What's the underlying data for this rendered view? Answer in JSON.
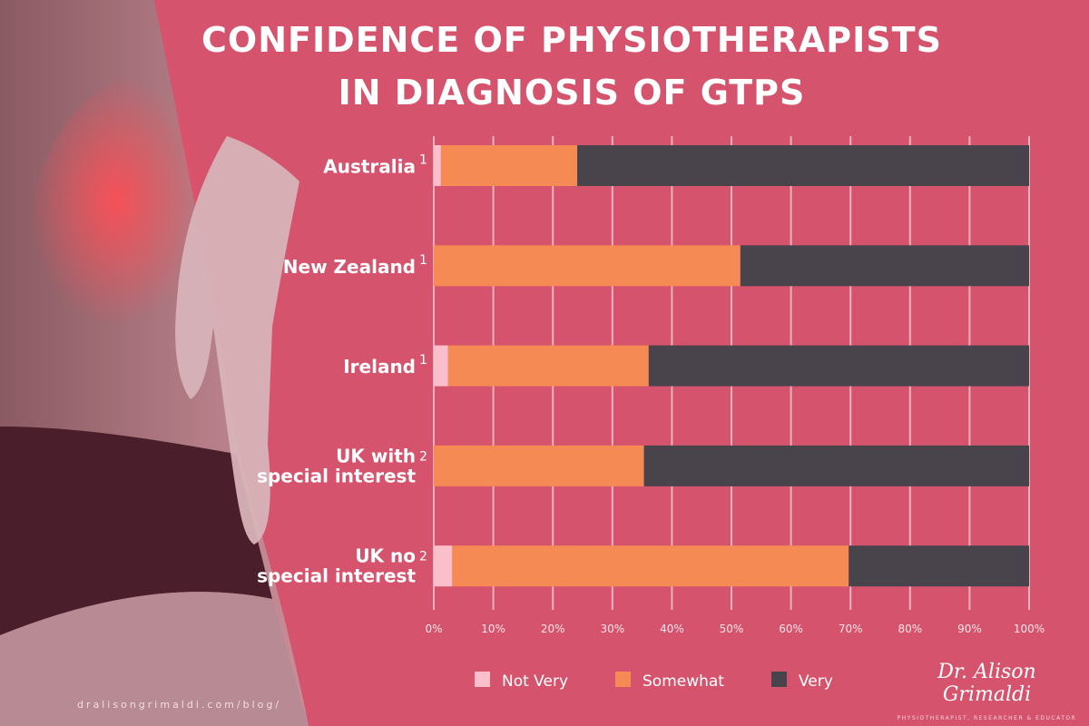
{
  "title": {
    "line1": "CONFIDENCE OF PHYSIOTHERAPISTS",
    "line2": "IN DIAGNOSIS OF GTPS"
  },
  "footer_url": "dralisongrimaldi.com/blog/",
  "logo": {
    "name": "Dr. Alison Grimaldi",
    "tagline": "PHYSIOTHERAPIST, RESEARCHER & EDUCATOR"
  },
  "colors": {
    "background": "#d6536d",
    "not_very": "#fbbfcc",
    "somewhat": "#f58a55",
    "very": "#49434c"
  },
  "chart_data": {
    "type": "bar",
    "orientation": "horizontal",
    "stacked": true,
    "title": "CONFIDENCE OF PHYSIOTHERAPISTS IN DIAGNOSIS OF GTPS",
    "categories": [
      {
        "label": [
          "Australia"
        ],
        "ref": "1"
      },
      {
        "label": [
          "New Zealand"
        ],
        "ref": "1"
      },
      {
        "label": [
          "Ireland"
        ],
        "ref": "1"
      },
      {
        "label": [
          "UK with",
          "special interest"
        ],
        "ref": "2"
      },
      {
        "label": [
          "UK no",
          "special interest"
        ],
        "ref": "2"
      }
    ],
    "series": [
      {
        "name": "Not Very",
        "color": "#fbbfcc",
        "values": [
          1.2,
          0,
          2.4,
          0,
          3.1
        ]
      },
      {
        "name": "Somewhat",
        "color": "#f58a55",
        "values": [
          22.9,
          51.5,
          33.7,
          35.3,
          66.6
        ]
      },
      {
        "name": "Very",
        "color": "#49434c",
        "values": [
          75.9,
          48.5,
          63.9,
          64.7,
          30.3
        ]
      }
    ],
    "xlim": [
      0,
      100
    ],
    "xticks": [
      "0%",
      "10%",
      "20%",
      "30%",
      "40%",
      "50%",
      "60%",
      "70%",
      "80%",
      "90%",
      "100%"
    ],
    "grid": true,
    "legend": "bottom"
  }
}
